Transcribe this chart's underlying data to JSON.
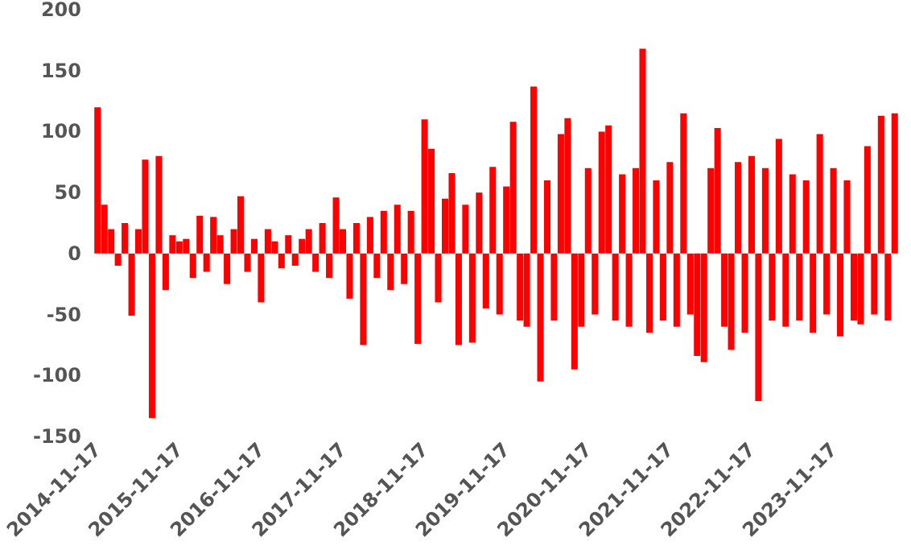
{
  "chart_data": {
    "type": "bar",
    "color": "#ff0000",
    "categories": [
      "2014-11-17",
      null,
      null,
      null,
      null,
      null,
      null,
      null,
      null,
      null,
      null,
      null,
      "2015-11-17",
      null,
      null,
      null,
      null,
      null,
      null,
      null,
      null,
      null,
      null,
      null,
      "2016-11-17",
      null,
      null,
      null,
      null,
      null,
      null,
      null,
      null,
      null,
      null,
      null,
      "2017-11-17",
      null,
      null,
      null,
      null,
      null,
      null,
      null,
      null,
      null,
      null,
      null,
      "2018-11-17",
      null,
      null,
      null,
      null,
      null,
      null,
      null,
      null,
      null,
      null,
      null,
      "2019-11-17",
      null,
      null,
      null,
      null,
      null,
      null,
      null,
      null,
      null,
      null,
      null,
      "2020-11-17",
      null,
      null,
      null,
      null,
      null,
      null,
      null,
      null,
      null,
      null,
      null,
      "2021-11-17",
      null,
      null,
      null,
      null,
      null,
      null,
      null,
      null,
      null,
      null,
      null,
      "2022-11-17",
      null,
      null,
      null,
      null,
      null,
      null,
      null,
      null,
      null,
      null,
      null,
      "2023-11-17",
      null,
      null,
      null,
      null,
      null,
      null,
      null,
      null,
      null
    ],
    "values": [
      120,
      40,
      20,
      -10,
      25,
      -51,
      20,
      77,
      -135,
      80,
      -30,
      15,
      10,
      12,
      -20,
      31,
      -15,
      30,
      15,
      -25,
      20,
      47,
      -15,
      12,
      -40,
      20,
      10,
      -12,
      15,
      -10,
      12,
      20,
      -15,
      25,
      -20,
      46,
      20,
      -37,
      25,
      -75,
      30,
      -20,
      35,
      -30,
      40,
      -25,
      35,
      -74,
      110,
      86,
      -40,
      45,
      66,
      -75,
      40,
      -73,
      50,
      -45,
      71,
      -50,
      55,
      108,
      -55,
      -60,
      137,
      -105,
      60,
      -55,
      98,
      111,
      -95,
      -60,
      70,
      -50,
      100,
      105,
      -55,
      65,
      -60,
      70,
      168,
      -65,
      60,
      -55,
      75,
      -60,
      115,
      -50,
      -84,
      -89,
      70,
      103,
      -60,
      -79,
      75,
      -65,
      80,
      -121,
      70,
      -55,
      94,
      -60,
      65,
      -55,
      60,
      -65,
      98,
      -50,
      70,
      -68,
      60,
      -55,
      -58,
      88,
      -50,
      113,
      -55,
      115
    ],
    "ylim": [
      -150,
      200
    ],
    "yticks": [
      -150,
      -100,
      -50,
      0,
      50,
      100,
      150,
      200
    ],
    "grid": false
  }
}
